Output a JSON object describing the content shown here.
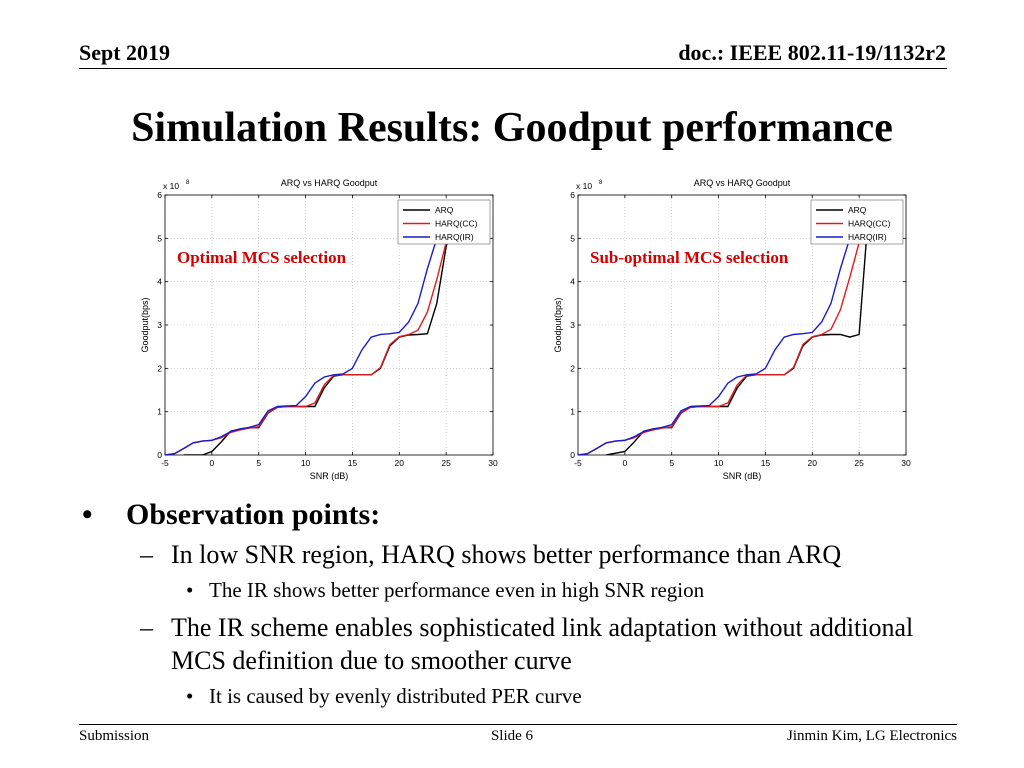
{
  "header": {
    "date": "Sept 2019",
    "doc": "doc.: IEEE 802.11-19/1132r2"
  },
  "slide_title": "Simulation Results: Goodput performance",
  "chart_data": [
    {
      "type": "line",
      "title": "ARQ vs HARQ Goodput",
      "annotation": "Optimal MCS selection",
      "xlabel": "SNR (dB)",
      "ylabel": "Goodput(bps)",
      "y_exponent": "x 10",
      "y_exponent_power": "8",
      "xlim": [
        -5,
        30
      ],
      "ylim": [
        0,
        6
      ],
      "xticks": [
        "-5",
        "0",
        "5",
        "10",
        "15",
        "20",
        "25",
        "30"
      ],
      "yticks": [
        "0",
        "1",
        "2",
        "3",
        "4",
        "5",
        "6"
      ],
      "grid": true,
      "legend_position": "top-right",
      "series": [
        {
          "name": "ARQ",
          "color": "#000000",
          "x": [
            -3,
            -1,
            0,
            1,
            2,
            3,
            4,
            5,
            6,
            7,
            8,
            9,
            10,
            11,
            12,
            13,
            14,
            15,
            16,
            17,
            18,
            19,
            20,
            21,
            22,
            23,
            24,
            25,
            26,
            26.5
          ],
          "y": [
            0,
            0,
            0.08,
            0.3,
            0.55,
            0.6,
            0.63,
            0.63,
            0.97,
            1.1,
            1.12,
            1.12,
            1.12,
            1.12,
            1.55,
            1.82,
            1.85,
            1.85,
            1.85,
            1.85,
            2.0,
            2.52,
            2.72,
            2.77,
            2.78,
            2.8,
            3.5,
            4.8,
            5.6,
            5.6
          ]
        },
        {
          "name": "HARQ(CC)",
          "color": "#e31a1c",
          "x": [
            -5,
            -4,
            -3,
            -2,
            -1,
            0,
            1,
            2,
            3,
            4,
            5,
            6,
            7,
            8,
            9,
            10,
            11,
            12,
            13,
            14,
            15,
            16,
            17,
            18,
            19,
            20,
            21,
            22,
            23,
            24,
            25,
            26,
            26.5
          ],
          "y": [
            0,
            0.03,
            0.15,
            0.28,
            0.32,
            0.34,
            0.4,
            0.52,
            0.58,
            0.62,
            0.65,
            0.98,
            1.1,
            1.12,
            1.12,
            1.12,
            1.2,
            1.62,
            1.84,
            1.85,
            1.85,
            1.85,
            1.85,
            2.02,
            2.55,
            2.73,
            2.78,
            2.88,
            3.3,
            4.05,
            4.9,
            5.6,
            5.6
          ]
        },
        {
          "name": "HARQ(IR)",
          "color": "#1a1acc",
          "x": [
            -5,
            -4,
            -3,
            -2,
            -1,
            0,
            1,
            2,
            3,
            4,
            5,
            6,
            7,
            8,
            9,
            10,
            11,
            12,
            13,
            14,
            15,
            16,
            17,
            18,
            19,
            20,
            21,
            22,
            23,
            24,
            25,
            26,
            26.5
          ],
          "y": [
            0,
            0.03,
            0.15,
            0.28,
            0.32,
            0.34,
            0.42,
            0.54,
            0.6,
            0.64,
            0.7,
            1.02,
            1.12,
            1.13,
            1.14,
            1.35,
            1.66,
            1.8,
            1.85,
            1.87,
            2.0,
            2.42,
            2.72,
            2.78,
            2.8,
            2.83,
            3.07,
            3.5,
            4.3,
            5.0,
            5.6,
            5.6,
            5.6
          ]
        }
      ]
    },
    {
      "type": "line",
      "title": "ARQ vs HARQ Goodput",
      "annotation": "Sub-optimal MCS selection",
      "xlabel": "SNR (dB)",
      "ylabel": "Goodput(bps)",
      "y_exponent": "x 10",
      "y_exponent_power": "8",
      "xlim": [
        -5,
        30
      ],
      "ylim": [
        0,
        6
      ],
      "xticks": [
        "-5",
        "0",
        "5",
        "10",
        "15",
        "20",
        "25",
        "30"
      ],
      "yticks": [
        "0",
        "1",
        "2",
        "3",
        "4",
        "5",
        "6"
      ],
      "grid": true,
      "legend_position": "top-right",
      "series": [
        {
          "name": "ARQ",
          "color": "#000000",
          "x": [
            -2,
            0,
            1,
            2,
            3,
            4,
            5,
            6,
            7,
            8,
            9,
            10,
            11,
            12,
            13,
            14,
            15,
            16,
            17,
            18,
            19,
            20,
            21,
            22,
            23,
            24,
            25,
            26,
            26.5
          ],
          "y": [
            0,
            0.08,
            0.3,
            0.55,
            0.6,
            0.63,
            0.63,
            0.97,
            1.1,
            1.12,
            1.12,
            1.12,
            1.12,
            1.55,
            1.82,
            1.85,
            1.85,
            1.85,
            1.85,
            2.0,
            2.52,
            2.72,
            2.77,
            2.78,
            2.78,
            2.72,
            2.78,
            5.6,
            5.6
          ]
        },
        {
          "name": "HARQ(CC)",
          "color": "#e31a1c",
          "x": [
            -5,
            -4,
            -3,
            -2,
            -1,
            0,
            1,
            2,
            3,
            4,
            5,
            6,
            7,
            8,
            9,
            10,
            11,
            12,
            13,
            14,
            15,
            16,
            17,
            18,
            19,
            20,
            21,
            22,
            23,
            24,
            25,
            26,
            26.5
          ],
          "y": [
            0,
            0.03,
            0.15,
            0.28,
            0.32,
            0.34,
            0.4,
            0.52,
            0.58,
            0.62,
            0.65,
            0.98,
            1.1,
            1.12,
            1.12,
            1.12,
            1.2,
            1.62,
            1.84,
            1.85,
            1.85,
            1.85,
            1.85,
            2.02,
            2.55,
            2.73,
            2.78,
            2.9,
            3.35,
            4.1,
            4.9,
            5.6,
            5.6
          ]
        },
        {
          "name": "HARQ(IR)",
          "color": "#1a1acc",
          "x": [
            -5,
            -4,
            -3,
            -2,
            -1,
            0,
            1,
            2,
            3,
            4,
            5,
            6,
            7,
            8,
            9,
            10,
            11,
            12,
            13,
            14,
            15,
            16,
            17,
            18,
            19,
            20,
            21,
            22,
            23,
            24,
            25,
            26,
            26.5
          ],
          "y": [
            0,
            0.03,
            0.15,
            0.28,
            0.32,
            0.34,
            0.42,
            0.54,
            0.6,
            0.64,
            0.7,
            1.02,
            1.12,
            1.13,
            1.14,
            1.35,
            1.66,
            1.8,
            1.85,
            1.87,
            2.0,
            2.42,
            2.72,
            2.78,
            2.8,
            2.83,
            3.07,
            3.5,
            4.3,
            5.0,
            5.6,
            5.6,
            5.6
          ]
        }
      ]
    }
  ],
  "bullets": {
    "main": "Observation points:",
    "sub1": "In low SNR region, HARQ shows better performance than ARQ",
    "sub1_1": "The IR shows better performance even in high SNR region",
    "sub2": "The IR scheme enables sophisticated link adaptation without additional MCS definition due to smoother curve",
    "sub2_1": "It is caused by evenly distributed PER curve"
  },
  "footer": {
    "left": "Submission",
    "center": "Slide 6",
    "right": "Jinmin Kim, LG Electronics"
  }
}
